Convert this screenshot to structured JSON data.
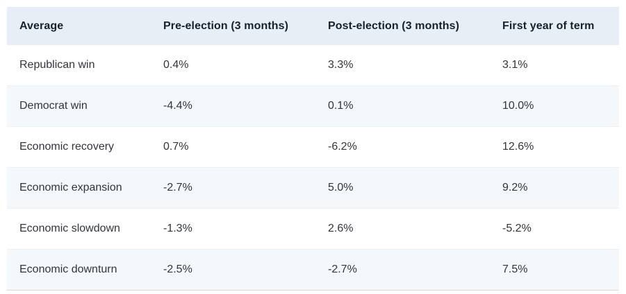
{
  "chart_data": {
    "type": "table",
    "columns": [
      "Average",
      "Pre-election (3 months)",
      "Post-election (3 months)",
      "First year of term"
    ],
    "rows": [
      {
        "label": "Republican win",
        "values": [
          "0.4%",
          "3.3%",
          "3.1%"
        ]
      },
      {
        "label": "Democrat win",
        "values": [
          "-4.4%",
          "0.1%",
          "10.0%"
        ]
      },
      {
        "label": "Economic recovery",
        "values": [
          "0.7%",
          "-6.2%",
          "12.6%"
        ]
      },
      {
        "label": "Economic expansion",
        "values": [
          "-2.7%",
          "5.0%",
          "9.2%"
        ]
      },
      {
        "label": "Economic slowdown",
        "values": [
          "-1.3%",
          "2.6%",
          "-5.2%"
        ]
      },
      {
        "label": "Economic downturn",
        "values": [
          "-2.5%",
          "-2.7%",
          "7.5%"
        ]
      }
    ],
    "title": "",
    "layout_hints": {
      "header_background": "#e8eef5",
      "alt_row_background": "#f5f8fb",
      "header_text_color": "#17212e",
      "body_text_color": "#30353b",
      "grid": "horizontal-separators-only"
    }
  }
}
